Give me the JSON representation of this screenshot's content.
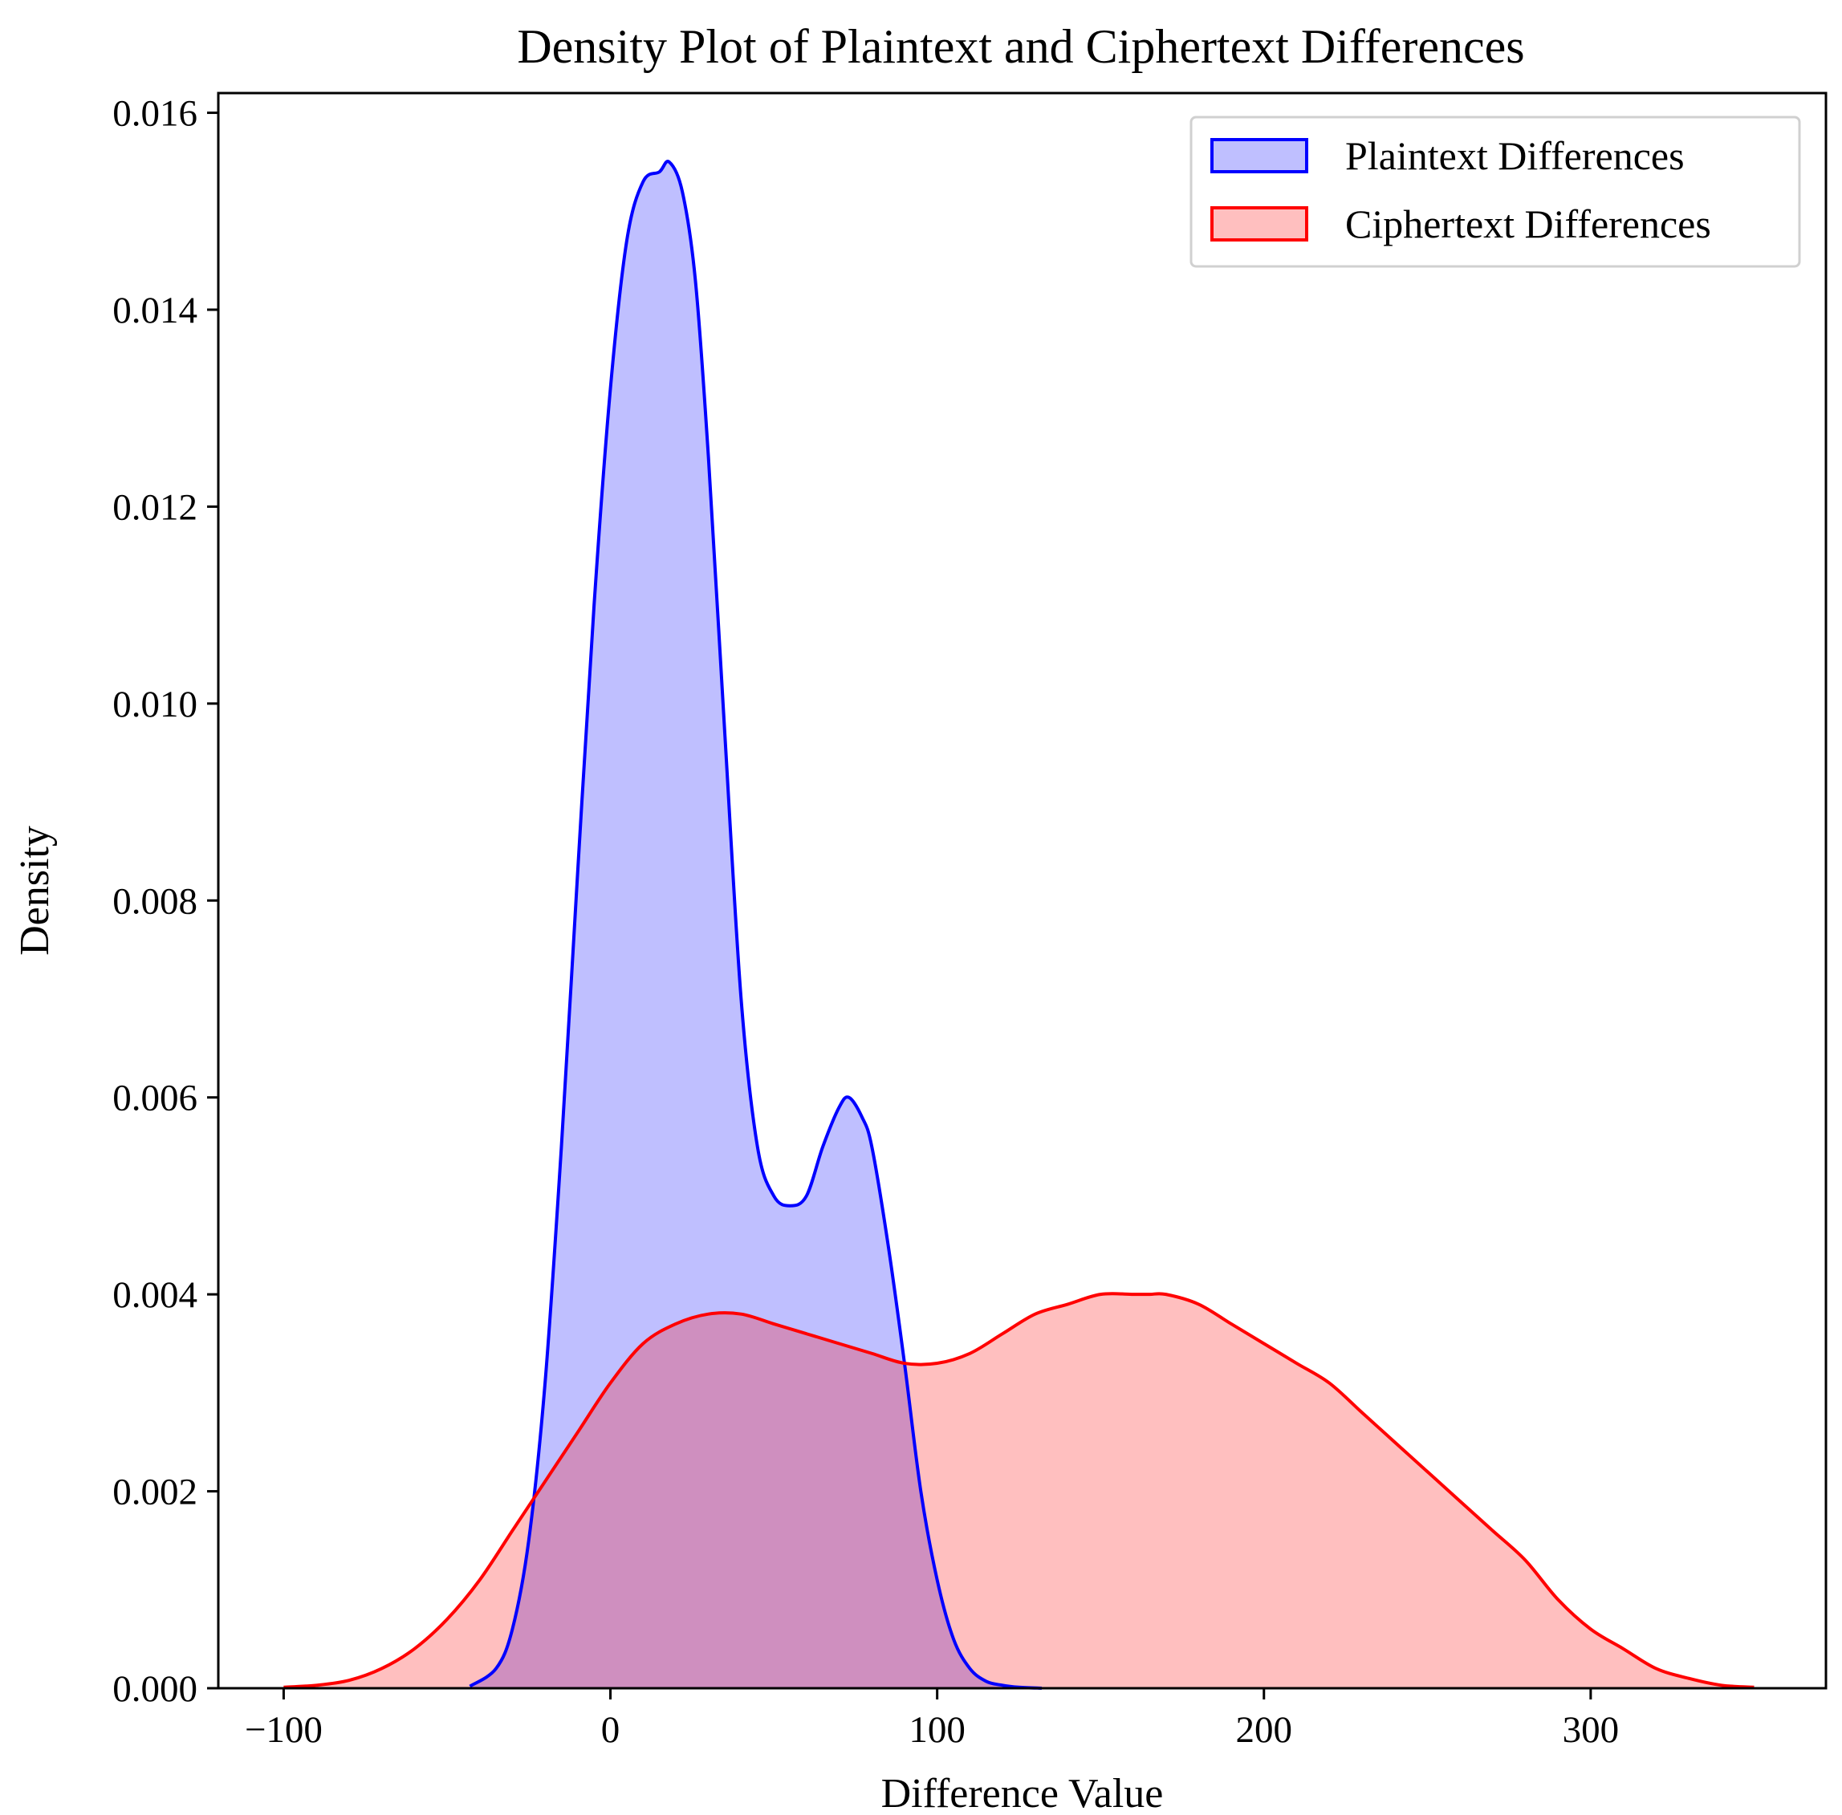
{
  "chart_data": {
    "type": "area",
    "title": "Density Plot of Plaintext and Ciphertext Differences",
    "xlabel": "Difference Value",
    "ylabel": "Density",
    "xlim": [
      -120,
      372
    ],
    "ylim": [
      0,
      0.0162
    ],
    "grid": false,
    "legend_position": "top-right",
    "x_ticks": [
      {
        "value": -100,
        "label": "−100"
      },
      {
        "value": 0,
        "label": "0"
      },
      {
        "value": 100,
        "label": "100"
      },
      {
        "value": 200,
        "label": "200"
      },
      {
        "value": 300,
        "label": "300"
      }
    ],
    "y_ticks": [
      {
        "value": 0,
        "label": "0.000"
      },
      {
        "value": 0.002,
        "label": "0.002"
      },
      {
        "value": 0.004,
        "label": "0.004"
      },
      {
        "value": 0.006,
        "label": "0.006"
      },
      {
        "value": 0.008,
        "label": "0.008"
      },
      {
        "value": 0.01,
        "label": "0.010"
      },
      {
        "value": 0.012,
        "label": "0.012"
      },
      {
        "value": 0.014,
        "label": "0.014"
      },
      {
        "value": 0.016,
        "label": "0.016"
      }
    ],
    "series": [
      {
        "name": "Plaintext Differences",
        "color": "#0000ff",
        "fill": "#0000ff",
        "fill_opacity": 0.25,
        "x": [
          -43,
          -35,
          -30,
          -25,
          -20,
          -15,
          -10,
          -5,
          0,
          5,
          10,
          15,
          18,
          22,
          26,
          30,
          35,
          40,
          45,
          50,
          55,
          60,
          65,
          70,
          73,
          77,
          80,
          85,
          90,
          95,
          100,
          105,
          110,
          115,
          120,
          125,
          132
        ],
        "y": [
          2e-05,
          0.0002,
          0.0006,
          0.0015,
          0.0031,
          0.0055,
          0.0083,
          0.011,
          0.0132,
          0.0147,
          0.0153,
          0.0154,
          0.0155,
          0.0152,
          0.0143,
          0.0125,
          0.0097,
          0.007,
          0.0055,
          0.005,
          0.0049,
          0.005,
          0.0055,
          0.0059,
          0.006,
          0.0058,
          0.0055,
          0.0045,
          0.0033,
          0.002,
          0.0011,
          0.0005,
          0.0002,
          7e-05,
          3e-05,
          1e-05,
          0.0
        ]
      },
      {
        "name": "Ciphertext Differences",
        "color": "#ff0000",
        "fill": "#ff0000",
        "fill_opacity": 0.25,
        "x": [
          -100,
          -90,
          -80,
          -70,
          -60,
          -50,
          -40,
          -30,
          -20,
          -10,
          0,
          10,
          20,
          30,
          40,
          50,
          60,
          70,
          80,
          90,
          100,
          110,
          120,
          130,
          140,
          150,
          160,
          165,
          170,
          180,
          190,
          200,
          210,
          220,
          230,
          240,
          250,
          260,
          270,
          280,
          290,
          300,
          310,
          320,
          330,
          340,
          350
        ],
        "y": [
          1e-05,
          3e-05,
          8e-05,
          0.0002,
          0.0004,
          0.0007,
          0.0011,
          0.0016,
          0.0021,
          0.0026,
          0.0031,
          0.0035,
          0.0037,
          0.0038,
          0.0038,
          0.0037,
          0.0036,
          0.0035,
          0.0034,
          0.0033,
          0.0033,
          0.0034,
          0.0036,
          0.0038,
          0.0039,
          0.004,
          0.004,
          0.004,
          0.004,
          0.0039,
          0.0037,
          0.0035,
          0.0033,
          0.0031,
          0.0028,
          0.0025,
          0.0022,
          0.0019,
          0.0016,
          0.0013,
          0.0009,
          0.0006,
          0.0004,
          0.0002,
          0.0001,
          3e-05,
          1e-05
        ]
      }
    ]
  }
}
